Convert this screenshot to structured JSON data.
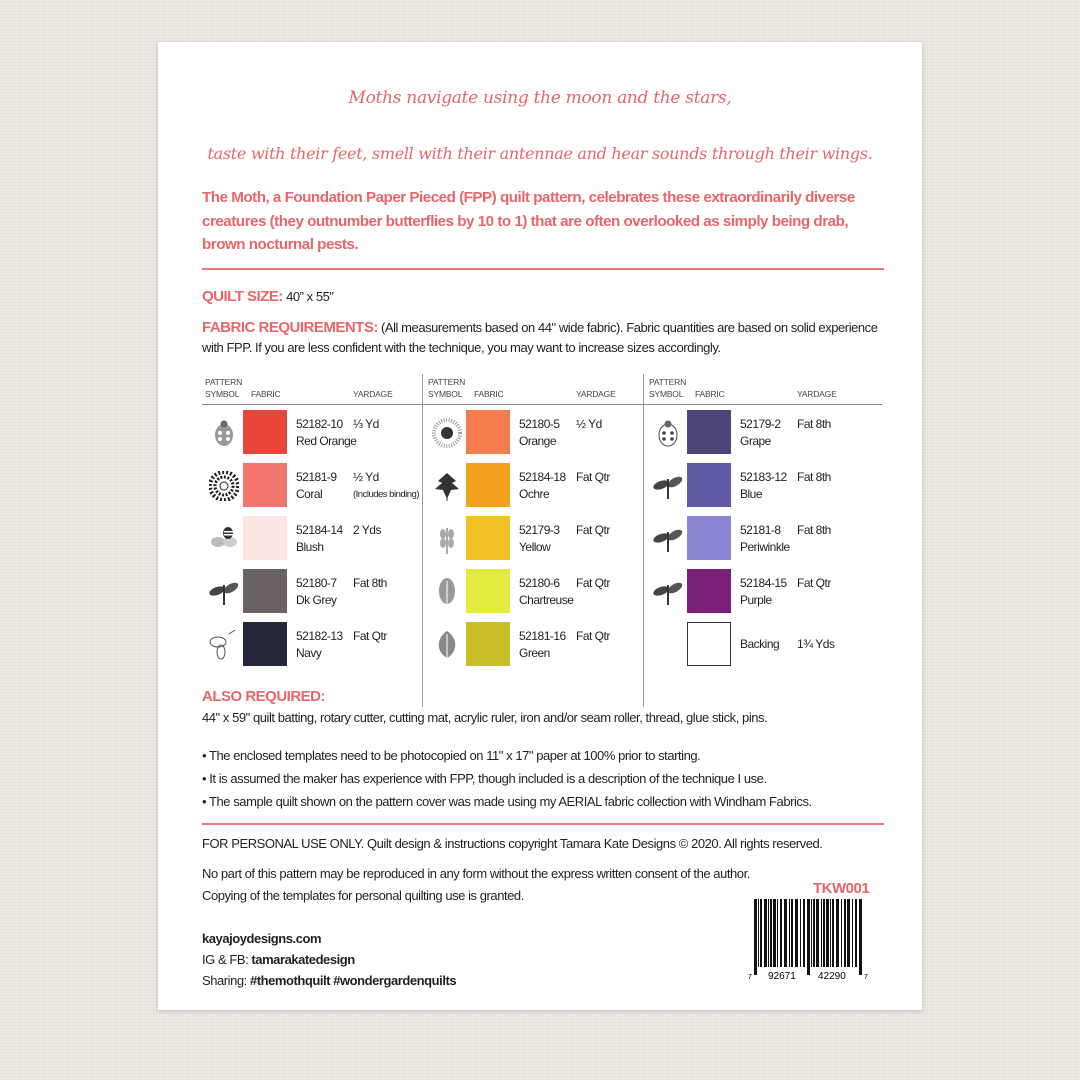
{
  "quote": {
    "line1": "Moths navigate using the moon and the stars,",
    "line2": "taste with their feet, smell with their antennae and hear sounds through their wings."
  },
  "intro": "The Moth, a Foundation Paper Pieced (FPP) quilt pattern, celebrates these extraordinarily diverse creatures (they outnumber butterflies by 10 to 1) that are often overlooked as simply being drab, brown nocturnal pests.",
  "quilt_size": {
    "label": "QUILT SIZE:",
    "value": "40” x 55”"
  },
  "fabric_req": {
    "label": "FABRIC REQUIREMENTS:",
    "text": "(All measurements based on 44\" wide fabric). Fabric quantities are based on solid experience with FPP. If you are less confident with the technique, you may want to increase sizes accordingly."
  },
  "table": {
    "headers": {
      "symbol1": "PATTERN",
      "symbol2": "SYMBOL",
      "fabric": "FABRIC",
      "yardage": "YARDAGE"
    },
    "columns": [
      [
        {
          "code": "52182-10",
          "name": "Red Orange",
          "yardage": "⅓ Yd",
          "note": "",
          "color": "#e8453a",
          "symbol": "ladybug-icon"
        },
        {
          "code": "52181-9",
          "name": "Coral",
          "yardage": "½ Yd",
          "note": "(Includes binding)",
          "color": "#f2746e",
          "symbol": "flower-icon"
        },
        {
          "code": "52184-14",
          "name": "Blush",
          "yardage": "2 Yds",
          "note": "",
          "color": "#fbe6e3",
          "symbol": "bee-icon"
        },
        {
          "code": "52180-7",
          "name": "Dk Grey",
          "yardage": "Fat 8th",
          "note": "",
          "color": "#6b6363",
          "symbol": "dragonfly-icon"
        },
        {
          "code": "52182-13",
          "name": "Navy",
          "yardage": "Fat Qtr",
          "note": "",
          "color": "#24263a",
          "symbol": "moth-icon"
        }
      ],
      [
        {
          "code": "52180-5",
          "name": "Orange",
          "yardage": "½ Yd",
          "note": "",
          "color": "#f47d4e",
          "symbol": "sunflower-icon"
        },
        {
          "code": "52184-18",
          "name": "Ochre",
          "yardage": "Fat Qtr",
          "note": "",
          "color": "#f3a11e",
          "symbol": "leaf-icon"
        },
        {
          "code": "52179-3",
          "name": "Yellow",
          "yardage": "Fat Qtr",
          "note": "",
          "color": "#f2c326",
          "symbol": "sprig-icon"
        },
        {
          "code": "52180-6",
          "name": "Chartreuse",
          "yardage": "Fat Qtr",
          "note": "",
          "color": "#e3ec3e",
          "symbol": "oak-leaf-icon"
        },
        {
          "code": "52181-16",
          "name": "Green",
          "yardage": "Fat Qtr",
          "note": "",
          "color": "#cbbe2a",
          "symbol": "round-leaf-icon"
        }
      ],
      [
        {
          "code": "52179-2",
          "name": "Grape",
          "yardage": "Fat 8th",
          "note": "",
          "color": "#4c4778",
          "symbol": "ladybug-outline-icon"
        },
        {
          "code": "52183-12",
          "name": "Blue",
          "yardage": "Fat 8th",
          "note": "",
          "color": "#5e5aa6",
          "symbol": "dragonfly-icon"
        },
        {
          "code": "52181-8",
          "name": "Periwinkle",
          "yardage": "Fat 8th",
          "note": "",
          "color": "#8b86d6",
          "symbol": "dragonfly-icon"
        },
        {
          "code": "52184-15",
          "name": "Purple",
          "yardage": "Fat Qtr",
          "note": "",
          "color": "#7a1e78",
          "symbol": "dragonfly-icon"
        },
        {
          "code": "",
          "name": "Backing",
          "yardage": "1¾ Yds",
          "note": "",
          "color": "#ffffff",
          "symbol": ""
        }
      ]
    ]
  },
  "also_required": {
    "label": "ALSO REQUIRED:",
    "text": "44\" x 59\" quilt batting, rotary cutter, cutting mat, acrylic ruler, iron and/or seam roller, thread, glue stick, pins."
  },
  "bullets": [
    "• The enclosed templates need to be photocopied on 11\" x 17\" paper at 100% prior to starting.",
    "• It is assumed the maker has experience with FPP, though included is a description of the technique I use.",
    "• The sample quilt shown on the pattern cover was made using my AERIAL fabric collection with Windham Fabrics."
  ],
  "legal": {
    "line1": "FOR PERSONAL USE ONLY. Quilt design & instructions copyright Tamara Kate Designs © 2020. All rights reserved.",
    "line2": "No part of this pattern may be reproduced in any form without the express written consent of the author.",
    "line3": "Copying of the templates for personal quilting use is granted."
  },
  "contact": {
    "website": "kayajoydesigns.com",
    "ig_label": "IG & FB: ",
    "ig_handle": "tamarakatedesign",
    "sharing_label": "Sharing: ",
    "hashtags": "#themothquilt #wondergardenquilts"
  },
  "sku": "TKW001",
  "barcode": {
    "d1": "7",
    "d2": "92671",
    "d3": "42290",
    "d4": "7"
  },
  "colors": {
    "accent": "#e8666a"
  }
}
